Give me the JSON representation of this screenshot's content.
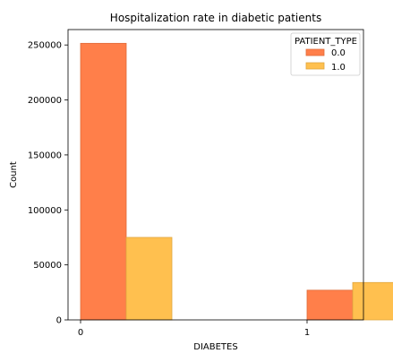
{
  "chart_data": {
    "type": "bar",
    "title": "Hospitalization rate in diabetic patients",
    "xlabel": "DIABETES",
    "ylabel": "Count",
    "categories": [
      "0",
      "1"
    ],
    "series": [
      {
        "name": "0.0",
        "values": [
          251500,
          27000
        ],
        "color": "#ff7f4a"
      },
      {
        "name": "1.0",
        "values": [
          75000,
          34000
        ],
        "color": "#ffc04f"
      }
    ],
    "ylim": [
      0,
      264000
    ],
    "yticks": [
      0,
      50000,
      100000,
      150000,
      200000,
      250000
    ],
    "legend": {
      "title": "PATIENT_TYPE",
      "placement": "top-right"
    },
    "grid": false
  }
}
